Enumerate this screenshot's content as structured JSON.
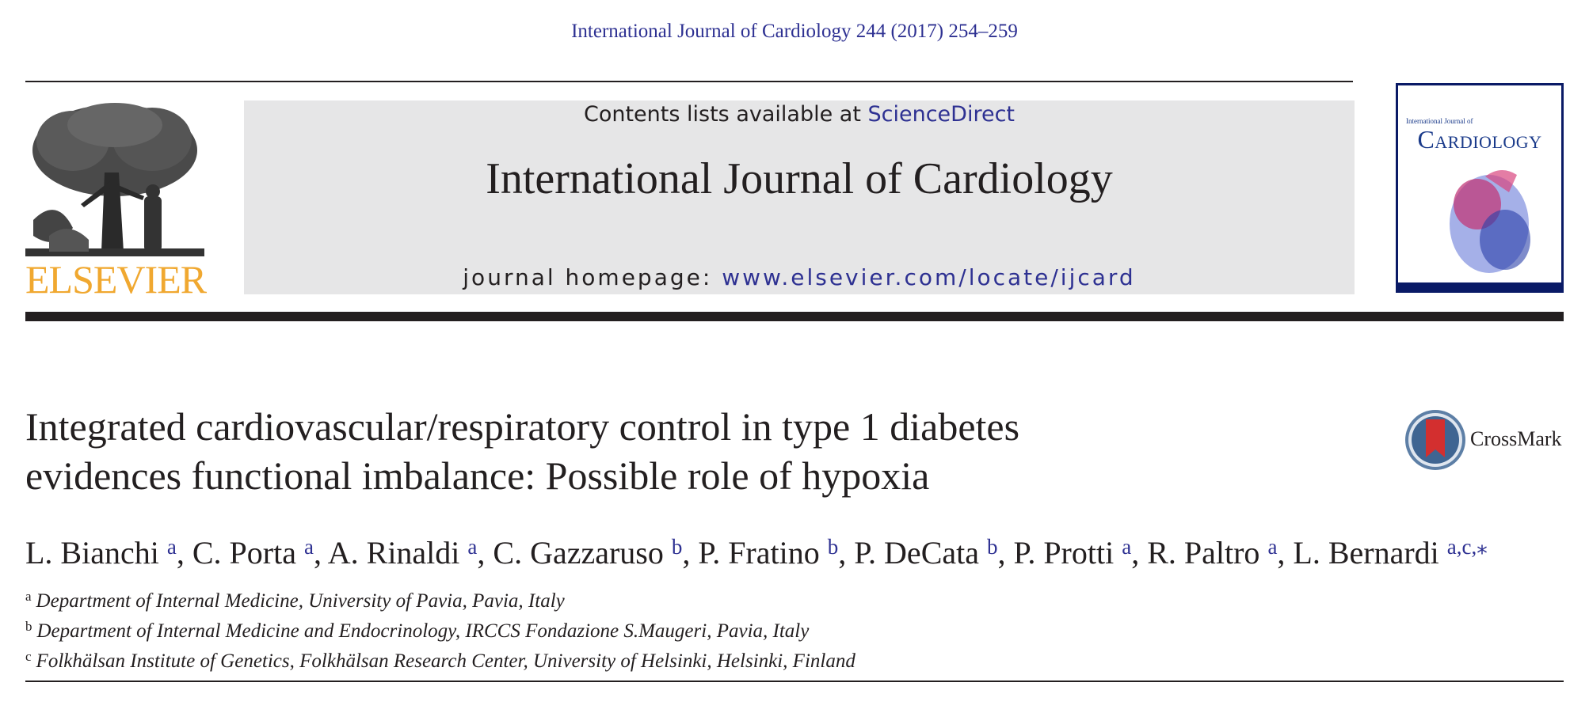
{
  "citation": "International Journal of Cardiology 244 (2017) 254–259",
  "publisher": {
    "logo_text": "ELSEVIER",
    "logo_icon": "elsevier-tree-icon"
  },
  "banner": {
    "contents_prefix": "Contents lists available at ",
    "contents_link": "ScienceDirect",
    "journal_title": "International Journal of Cardiology",
    "homepage_prefix": "journal homepage: ",
    "homepage_link": "www.elsevier.com/locate/ijcard"
  },
  "cover": {
    "title": "Cardiology",
    "subtitle": "International Journal of"
  },
  "article": {
    "title_line1": "Integrated cardiovascular/respiratory control in type 1 diabetes",
    "title_line2": "evidences functional imbalance: Possible role of hypoxia"
  },
  "crossmark": {
    "label": "CrossMark",
    "icon": "crossmark-icon"
  },
  "authors": [
    {
      "name": "L. Bianchi",
      "sup": "a",
      "sep": ", "
    },
    {
      "name": "C. Porta",
      "sup": "a",
      "sep": ", "
    },
    {
      "name": "A. Rinaldi",
      "sup": "a",
      "sep": ", "
    },
    {
      "name": "C. Gazzaruso",
      "sup": "b",
      "sep": ", "
    },
    {
      "name": "P. Fratino",
      "sup": "b",
      "sep": ", "
    },
    {
      "name": "P. DeCata",
      "sup": "b",
      "sep": ", "
    },
    {
      "name": "P. Protti",
      "sup": "a",
      "sep": ", "
    },
    {
      "name": "R. Paltro",
      "sup": "a",
      "sep": ", "
    },
    {
      "name": "L. Bernardi",
      "sup": "a,c,",
      "sep": ""
    }
  ],
  "corresponding_mark": "⁎",
  "affiliations": [
    {
      "sup": "a",
      "text": "Department of Internal Medicine, University of Pavia, Pavia, Italy"
    },
    {
      "sup": "b",
      "text": "Department of Internal Medicine and Endocrinology, IRCCS Fondazione S.Maugeri, Pavia, Italy"
    },
    {
      "sup": "c",
      "text": "Folkhälsan Institute of Genetics, Folkhälsan Research Center, University of Helsinki, Helsinki, Finland"
    }
  ],
  "colors": {
    "link": "#2e3192",
    "logo": "#f0a830",
    "banner_bg": "#e6e6e7",
    "text": "#231f20"
  }
}
